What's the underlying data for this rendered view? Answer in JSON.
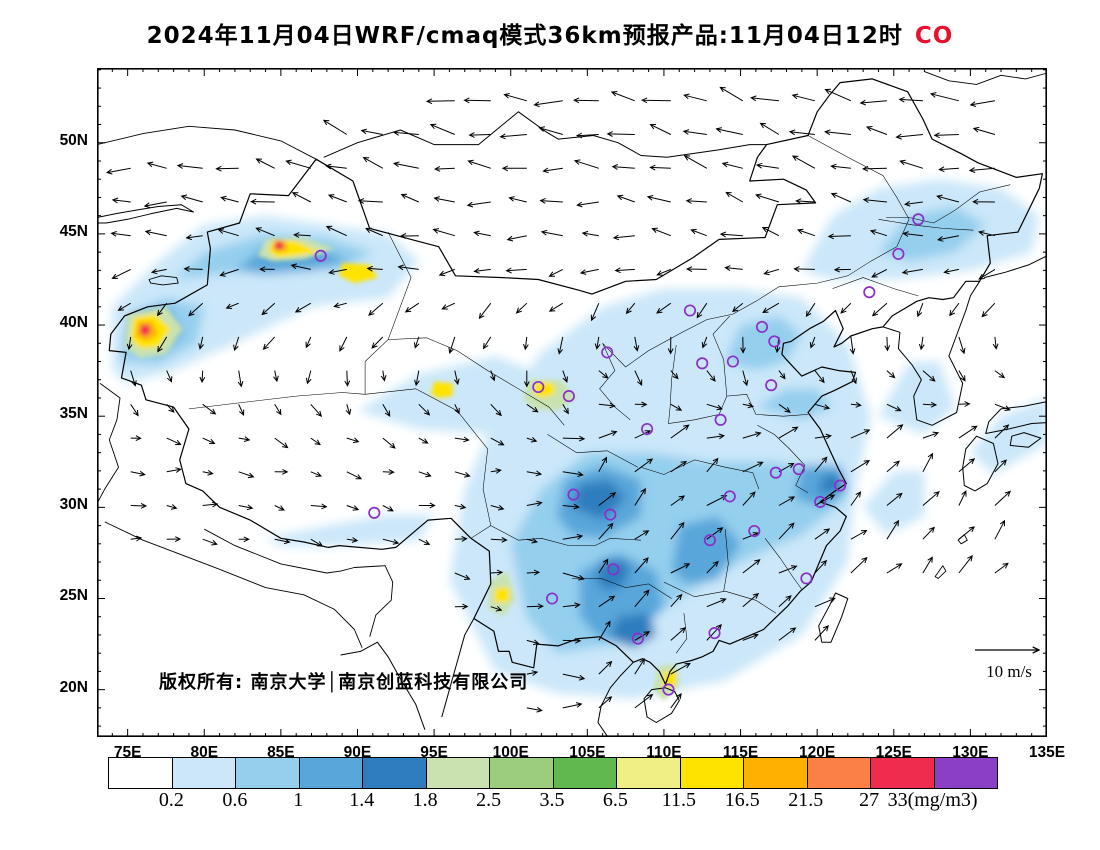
{
  "title": {
    "prefix": "2024年11月04日WRF/cmaq模式36km预报产品:11月04日12时",
    "pollutant": "CO"
  },
  "accent": {
    "title_pollutant_color": "#e8112d"
  },
  "map": {
    "copyright": "版权所有: 南京大学│南京创蓝科技有限公司",
    "wind_scale_label": "10 m/s",
    "station_marker_color": "#8b2fc9",
    "lat_axis": {
      "labels": [
        "50N",
        "45N",
        "40N",
        "35N",
        "30N",
        "25N",
        "20N"
      ],
      "values": [
        50,
        45,
        40,
        35,
        30,
        25,
        20
      ]
    },
    "lon_axis": {
      "labels": [
        "75E",
        "80E",
        "85E",
        "90E",
        "95E",
        "100E",
        "105E",
        "110E",
        "115E",
        "120E",
        "125E",
        "130E",
        "135E"
      ],
      "values": [
        75,
        80,
        85,
        90,
        95,
        100,
        105,
        110,
        115,
        120,
        125,
        130,
        135
      ]
    },
    "stations_lonlat": [
      [
        87.6,
        43.8
      ],
      [
        126.6,
        45.8
      ],
      [
        125.3,
        43.9
      ],
      [
        123.4,
        41.8
      ],
      [
        116.4,
        39.9
      ],
      [
        117.2,
        39.1
      ],
      [
        114.5,
        38.0
      ],
      [
        112.5,
        37.9
      ],
      [
        111.7,
        40.8
      ],
      [
        117.0,
        36.7
      ],
      [
        113.7,
        34.8
      ],
      [
        108.9,
        34.3
      ],
      [
        106.3,
        38.5
      ],
      [
        103.8,
        36.1
      ],
      [
        101.8,
        36.6
      ],
      [
        104.1,
        30.7
      ],
      [
        106.5,
        29.6
      ],
      [
        106.7,
        26.6
      ],
      [
        102.7,
        25.0
      ],
      [
        91.1,
        29.7
      ],
      [
        108.3,
        22.8
      ],
      [
        113.3,
        23.1
      ],
      [
        110.3,
        20.0
      ],
      [
        113.0,
        28.2
      ],
      [
        114.3,
        30.6
      ],
      [
        115.9,
        28.7
      ],
      [
        117.3,
        31.9
      ],
      [
        118.8,
        32.1
      ],
      [
        121.5,
        31.2
      ],
      [
        120.2,
        30.3
      ],
      [
        119.3,
        26.1
      ]
    ]
  },
  "colorbar": {
    "levels": [
      "0.2",
      "0.6",
      "1",
      "1.4",
      "1.8",
      "2.5",
      "3.5",
      "6.5",
      "11.5",
      "16.5",
      "21.5",
      "27",
      "33(mg/m3)"
    ],
    "colors": [
      "#ffffff",
      "#cbe7f9",
      "#94cfee",
      "#58a6da",
      "#2f7dbe",
      "#c9e2b0",
      "#9ccd7c",
      "#60b84f",
      "#f0ef86",
      "#ffe300",
      "#ffb000",
      "#fb8046",
      "#ef2b4e",
      "#8a3fc6"
    ]
  }
}
